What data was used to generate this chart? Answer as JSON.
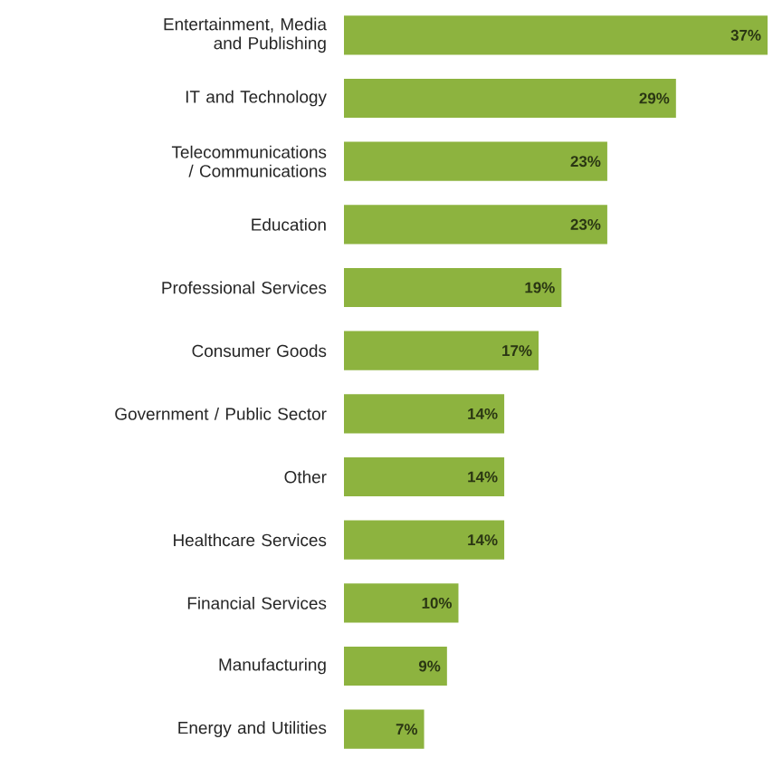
{
  "chart_data": {
    "type": "bar",
    "orientation": "horizontal",
    "color": "#8db33f",
    "categories": [
      "Entertainment, Media and Publishing",
      "IT and Technology",
      "Telecommunications / Communications",
      "Education",
      "Professional Services",
      "Consumer Goods",
      "Government / Public Sector",
      "Other",
      "Healthcare Services",
      "Financial Services",
      "Manufacturing",
      "Energy and Utilities"
    ],
    "values": [
      37,
      29,
      23,
      23,
      19,
      17,
      14,
      14,
      14,
      10,
      9,
      7
    ],
    "value_labels": [
      "37%",
      "29%",
      "23%",
      "23%",
      "19%",
      "17%",
      "14%",
      "14%",
      "14%",
      "10%",
      "9%",
      "7%"
    ]
  }
}
